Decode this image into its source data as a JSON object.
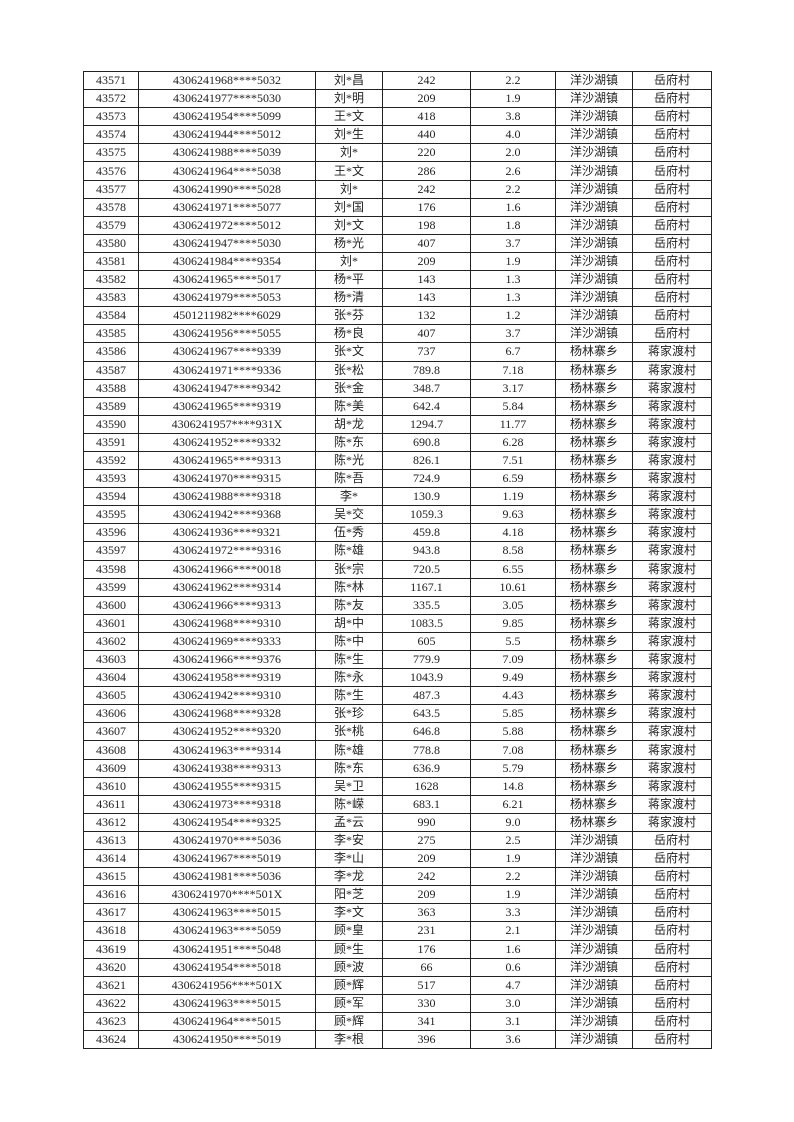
{
  "rows": [
    [
      "43571",
      "4306241968****5032",
      "刘*昌",
      "242",
      "2.2",
      "洋沙湖镇",
      "岳府村"
    ],
    [
      "43572",
      "4306241977****5030",
      "刘*明",
      "209",
      "1.9",
      "洋沙湖镇",
      "岳府村"
    ],
    [
      "43573",
      "4306241954****5099",
      "王*文",
      "418",
      "3.8",
      "洋沙湖镇",
      "岳府村"
    ],
    [
      "43574",
      "4306241944****5012",
      "刘*生",
      "440",
      "4.0",
      "洋沙湖镇",
      "岳府村"
    ],
    [
      "43575",
      "4306241988****5039",
      "刘*",
      "220",
      "2.0",
      "洋沙湖镇",
      "岳府村"
    ],
    [
      "43576",
      "4306241964****5038",
      "王*文",
      "286",
      "2.6",
      "洋沙湖镇",
      "岳府村"
    ],
    [
      "43577",
      "4306241990****5028",
      "刘*",
      "242",
      "2.2",
      "洋沙湖镇",
      "岳府村"
    ],
    [
      "43578",
      "4306241971****5077",
      "刘*国",
      "176",
      "1.6",
      "洋沙湖镇",
      "岳府村"
    ],
    [
      "43579",
      "4306241972****5012",
      "刘*文",
      "198",
      "1.8",
      "洋沙湖镇",
      "岳府村"
    ],
    [
      "43580",
      "4306241947****5030",
      "杨*光",
      "407",
      "3.7",
      "洋沙湖镇",
      "岳府村"
    ],
    [
      "43581",
      "4306241984****9354",
      "刘*",
      "209",
      "1.9",
      "洋沙湖镇",
      "岳府村"
    ],
    [
      "43582",
      "4306241965****5017",
      "杨*平",
      "143",
      "1.3",
      "洋沙湖镇",
      "岳府村"
    ],
    [
      "43583",
      "4306241979****5053",
      "杨*清",
      "143",
      "1.3",
      "洋沙湖镇",
      "岳府村"
    ],
    [
      "43584",
      "4501211982****6029",
      "张*芬",
      "132",
      "1.2",
      "洋沙湖镇",
      "岳府村"
    ],
    [
      "43585",
      "4306241956****5055",
      "杨*良",
      "407",
      "3.7",
      "洋沙湖镇",
      "岳府村"
    ],
    [
      "43586",
      "4306241967****9339",
      "张*文",
      "737",
      "6.7",
      "杨林寨乡",
      "蒋家渡村"
    ],
    [
      "43587",
      "4306241971****9336",
      "张*松",
      "789.8",
      "7.18",
      "杨林寨乡",
      "蒋家渡村"
    ],
    [
      "43588",
      "4306241947****9342",
      "张*金",
      "348.7",
      "3.17",
      "杨林寨乡",
      "蒋家渡村"
    ],
    [
      "43589",
      "4306241965****9319",
      "陈*美",
      "642.4",
      "5.84",
      "杨林寨乡",
      "蒋家渡村"
    ],
    [
      "43590",
      "4306241957****931X",
      "胡*龙",
      "1294.7",
      "11.77",
      "杨林寨乡",
      "蒋家渡村"
    ],
    [
      "43591",
      "4306241952****9332",
      "陈*东",
      "690.8",
      "6.28",
      "杨林寨乡",
      "蒋家渡村"
    ],
    [
      "43592",
      "4306241965****9313",
      "陈*光",
      "826.1",
      "7.51",
      "杨林寨乡",
      "蒋家渡村"
    ],
    [
      "43593",
      "4306241970****9315",
      "陈*吾",
      "724.9",
      "6.59",
      "杨林寨乡",
      "蒋家渡村"
    ],
    [
      "43594",
      "4306241988****9318",
      "李*",
      "130.9",
      "1.19",
      "杨林寨乡",
      "蒋家渡村"
    ],
    [
      "43595",
      "4306241942****9368",
      "吴*交",
      "1059.3",
      "9.63",
      "杨林寨乡",
      "蒋家渡村"
    ],
    [
      "43596",
      "4306241936****9321",
      "伍*秀",
      "459.8",
      "4.18",
      "杨林寨乡",
      "蒋家渡村"
    ],
    [
      "43597",
      "4306241972****9316",
      "陈*雄",
      "943.8",
      "8.58",
      "杨林寨乡",
      "蒋家渡村"
    ],
    [
      "43598",
      "4306241966****0018",
      "张*宗",
      "720.5",
      "6.55",
      "杨林寨乡",
      "蒋家渡村"
    ],
    [
      "43599",
      "4306241962****9314",
      "陈*林",
      "1167.1",
      "10.61",
      "杨林寨乡",
      "蒋家渡村"
    ],
    [
      "43600",
      "4306241966****9313",
      "陈*友",
      "335.5",
      "3.05",
      "杨林寨乡",
      "蒋家渡村"
    ],
    [
      "43601",
      "4306241968****9310",
      "胡*中",
      "1083.5",
      "9.85",
      "杨林寨乡",
      "蒋家渡村"
    ],
    [
      "43602",
      "4306241969****9333",
      "陈*中",
      "605",
      "5.5",
      "杨林寨乡",
      "蒋家渡村"
    ],
    [
      "43603",
      "4306241966****9376",
      "陈*生",
      "779.9",
      "7.09",
      "杨林寨乡",
      "蒋家渡村"
    ],
    [
      "43604",
      "4306241958****9319",
      "陈*永",
      "1043.9",
      "9.49",
      "杨林寨乡",
      "蒋家渡村"
    ],
    [
      "43605",
      "4306241942****9310",
      "陈*生",
      "487.3",
      "4.43",
      "杨林寨乡",
      "蒋家渡村"
    ],
    [
      "43606",
      "4306241968****9328",
      "张*珍",
      "643.5",
      "5.85",
      "杨林寨乡",
      "蒋家渡村"
    ],
    [
      "43607",
      "4306241952****9320",
      "张*桃",
      "646.8",
      "5.88",
      "杨林寨乡",
      "蒋家渡村"
    ],
    [
      "43608",
      "4306241963****9314",
      "陈*雄",
      "778.8",
      "7.08",
      "杨林寨乡",
      "蒋家渡村"
    ],
    [
      "43609",
      "4306241938****9313",
      "陈*东",
      "636.9",
      "5.79",
      "杨林寨乡",
      "蒋家渡村"
    ],
    [
      "43610",
      "4306241955****9315",
      "吴*卫",
      "1628",
      "14.8",
      "杨林寨乡",
      "蒋家渡村"
    ],
    [
      "43611",
      "4306241973****9318",
      "陈*嵘",
      "683.1",
      "6.21",
      "杨林寨乡",
      "蒋家渡村"
    ],
    [
      "43612",
      "4306241954****9325",
      "孟*云",
      "990",
      "9.0",
      "杨林寨乡",
      "蒋家渡村"
    ],
    [
      "43613",
      "4306241970****5036",
      "李*安",
      "275",
      "2.5",
      "洋沙湖镇",
      "岳府村"
    ],
    [
      "43614",
      "4306241967****5019",
      "李*山",
      "209",
      "1.9",
      "洋沙湖镇",
      "岳府村"
    ],
    [
      "43615",
      "4306241981****5036",
      "李*龙",
      "242",
      "2.2",
      "洋沙湖镇",
      "岳府村"
    ],
    [
      "43616",
      "4306241970****501X",
      "阳*芝",
      "209",
      "1.9",
      "洋沙湖镇",
      "岳府村"
    ],
    [
      "43617",
      "4306241963****5015",
      "李*文",
      "363",
      "3.3",
      "洋沙湖镇",
      "岳府村"
    ],
    [
      "43618",
      "4306241963****5059",
      "顾*皇",
      "231",
      "2.1",
      "洋沙湖镇",
      "岳府村"
    ],
    [
      "43619",
      "4306241951****5048",
      "顾*生",
      "176",
      "1.6",
      "洋沙湖镇",
      "岳府村"
    ],
    [
      "43620",
      "4306241954****5018",
      "顾*波",
      "66",
      "0.6",
      "洋沙湖镇",
      "岳府村"
    ],
    [
      "43621",
      "4306241956****501X",
      "顾*辉",
      "517",
      "4.7",
      "洋沙湖镇",
      "岳府村"
    ],
    [
      "43622",
      "4306241963****5015",
      "顾*军",
      "330",
      "3.0",
      "洋沙湖镇",
      "岳府村"
    ],
    [
      "43623",
      "4306241964****5015",
      "顾*辉",
      "341",
      "3.1",
      "洋沙湖镇",
      "岳府村"
    ],
    [
      "43624",
      "4306241950****5019",
      "李*根",
      "396",
      "3.6",
      "洋沙湖镇",
      "岳府村"
    ]
  ]
}
